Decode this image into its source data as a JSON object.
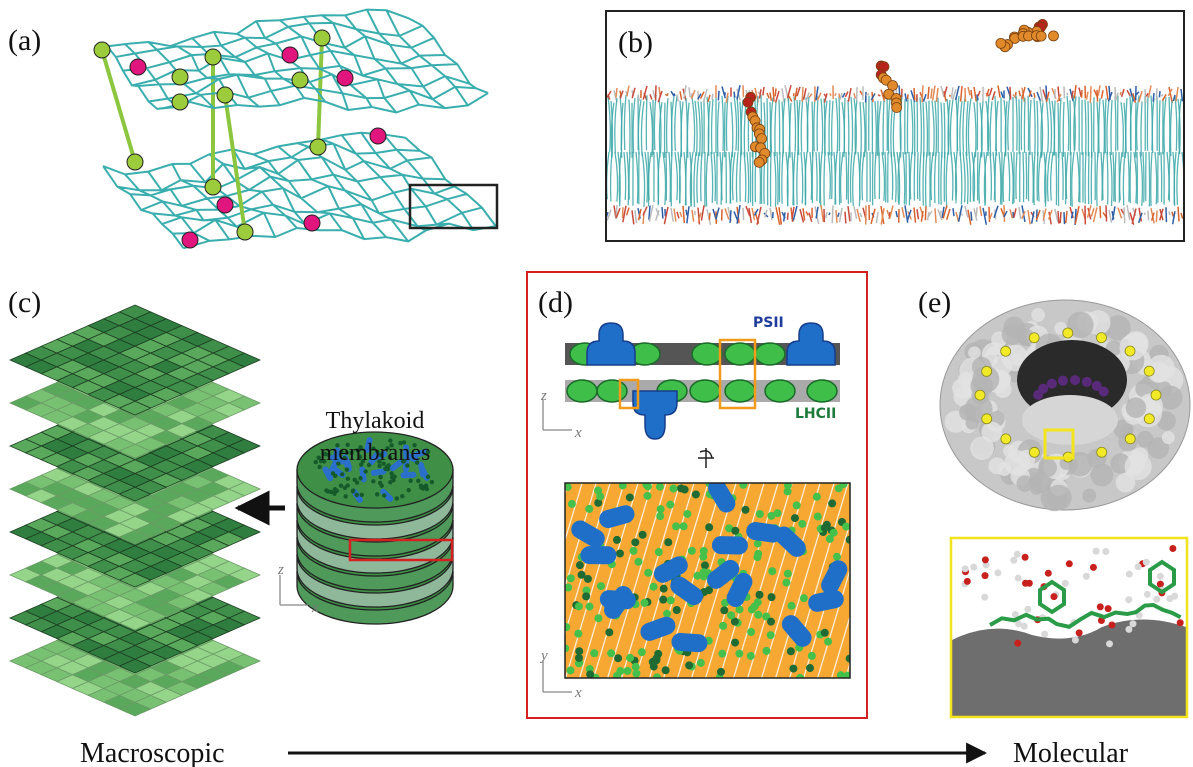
{
  "panels": {
    "a": {
      "label": "(a)"
    },
    "b": {
      "label": "(b)"
    },
    "c": {
      "label": "(c)",
      "title": [
        "Thylakoid",
        "membranes"
      ],
      "axes": [
        "z",
        "x"
      ]
    },
    "d": {
      "label": "(d)",
      "psii": "PSII",
      "lhcii": "LHCII",
      "axes_top": [
        "z",
        "x"
      ],
      "axes_bottom": [
        "y",
        "x"
      ]
    },
    "e": {
      "label": "(e)"
    }
  },
  "scale": {
    "start": "Macroscopic",
    "end": "Molecular"
  }
}
